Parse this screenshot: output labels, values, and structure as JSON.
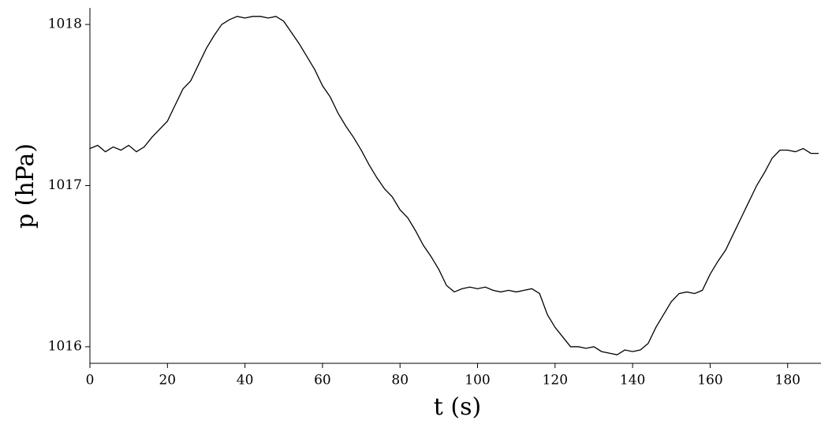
{
  "chart_data": {
    "type": "line",
    "x_label": "t (s)",
    "y_label": "p (hPa)",
    "x": [
      0,
      2,
      4,
      6,
      8,
      10,
      12,
      14,
      16,
      18,
      20,
      22,
      24,
      26,
      28,
      30,
      32,
      34,
      36,
      38,
      40,
      42,
      44,
      46,
      48,
      50,
      52,
      54,
      56,
      58,
      60,
      62,
      64,
      66,
      68,
      70,
      72,
      74,
      76,
      78,
      80,
      82,
      84,
      86,
      88,
      90,
      92,
      94,
      96,
      98,
      100,
      102,
      104,
      106,
      108,
      110,
      112,
      114,
      116,
      118,
      120,
      122,
      124,
      126,
      128,
      130,
      132,
      134,
      136,
      138,
      140,
      142,
      144,
      146,
      148,
      150,
      152,
      154,
      156,
      158,
      160,
      162,
      164,
      166,
      168,
      170,
      172,
      174,
      176,
      178,
      180,
      182,
      184,
      186,
      188
    ],
    "series": [
      {
        "name": "p",
        "color": "#000000",
        "values": [
          1017.23,
          1017.25,
          1017.21,
          1017.24,
          1017.22,
          1017.25,
          1017.21,
          1017.24,
          1017.3,
          1017.35,
          1017.4,
          1017.5,
          1017.6,
          1017.65,
          1017.75,
          1017.85,
          1017.93,
          1018.0,
          1018.03,
          1018.05,
          1018.04,
          1018.05,
          1018.05,
          1018.04,
          1018.05,
          1018.02,
          1017.95,
          1017.88,
          1017.8,
          1017.72,
          1017.62,
          1017.55,
          1017.45,
          1017.37,
          1017.3,
          1017.22,
          1017.13,
          1017.05,
          1016.98,
          1016.93,
          1016.85,
          1016.8,
          1016.72,
          1016.63,
          1016.56,
          1016.48,
          1016.38,
          1016.34,
          1016.36,
          1016.37,
          1016.36,
          1016.37,
          1016.35,
          1016.34,
          1016.35,
          1016.34,
          1016.35,
          1016.36,
          1016.33,
          1016.2,
          1016.12,
          1016.06,
          1016.0,
          1016.0,
          1015.99,
          1016.0,
          1015.97,
          1015.96,
          1015.95,
          1015.98,
          1015.97,
          1015.98,
          1016.02,
          1016.12,
          1016.2,
          1016.28,
          1016.33,
          1016.34,
          1016.33,
          1016.35,
          1016.45,
          1016.53,
          1016.6,
          1016.7,
          1016.8,
          1016.9,
          1017.0,
          1017.08,
          1017.17,
          1017.22,
          1017.22,
          1017.21,
          1017.23,
          1017.2,
          1017.2
        ]
      }
    ],
    "xlim": [
      0,
      188.6
    ],
    "xticks": [
      0,
      20,
      40,
      60,
      80,
      100,
      120,
      140,
      160,
      180
    ],
    "ylim": [
      1015.897,
      1018.103
    ],
    "yticks": [
      1016,
      1017,
      1018
    ],
    "grid": false
  }
}
